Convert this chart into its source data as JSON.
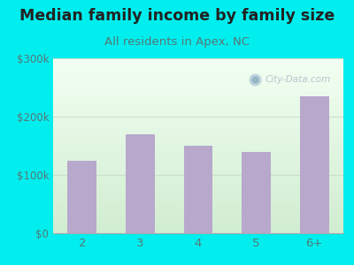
{
  "title": "Median family income by family size",
  "subtitle": "All residents in Apex, NC",
  "categories": [
    "2",
    "3",
    "4",
    "5",
    "6+"
  ],
  "values": [
    125000,
    170000,
    150000,
    140000,
    235000
  ],
  "bar_color": "#b8a8cc",
  "background_outer": "#00eeee",
  "title_fontsize": 12.5,
  "subtitle_fontsize": 9.5,
  "ylim": [
    0,
    300000
  ],
  "yticks": [
    0,
    100000,
    200000,
    300000
  ],
  "ytick_labels": [
    "$0",
    "$100k",
    "$200k",
    "$300k"
  ],
  "watermark": "City-Data.com",
  "title_color": "#222222",
  "subtitle_color": "#557777",
  "tick_color": "#557777",
  "grid_color": "#ccddcc"
}
